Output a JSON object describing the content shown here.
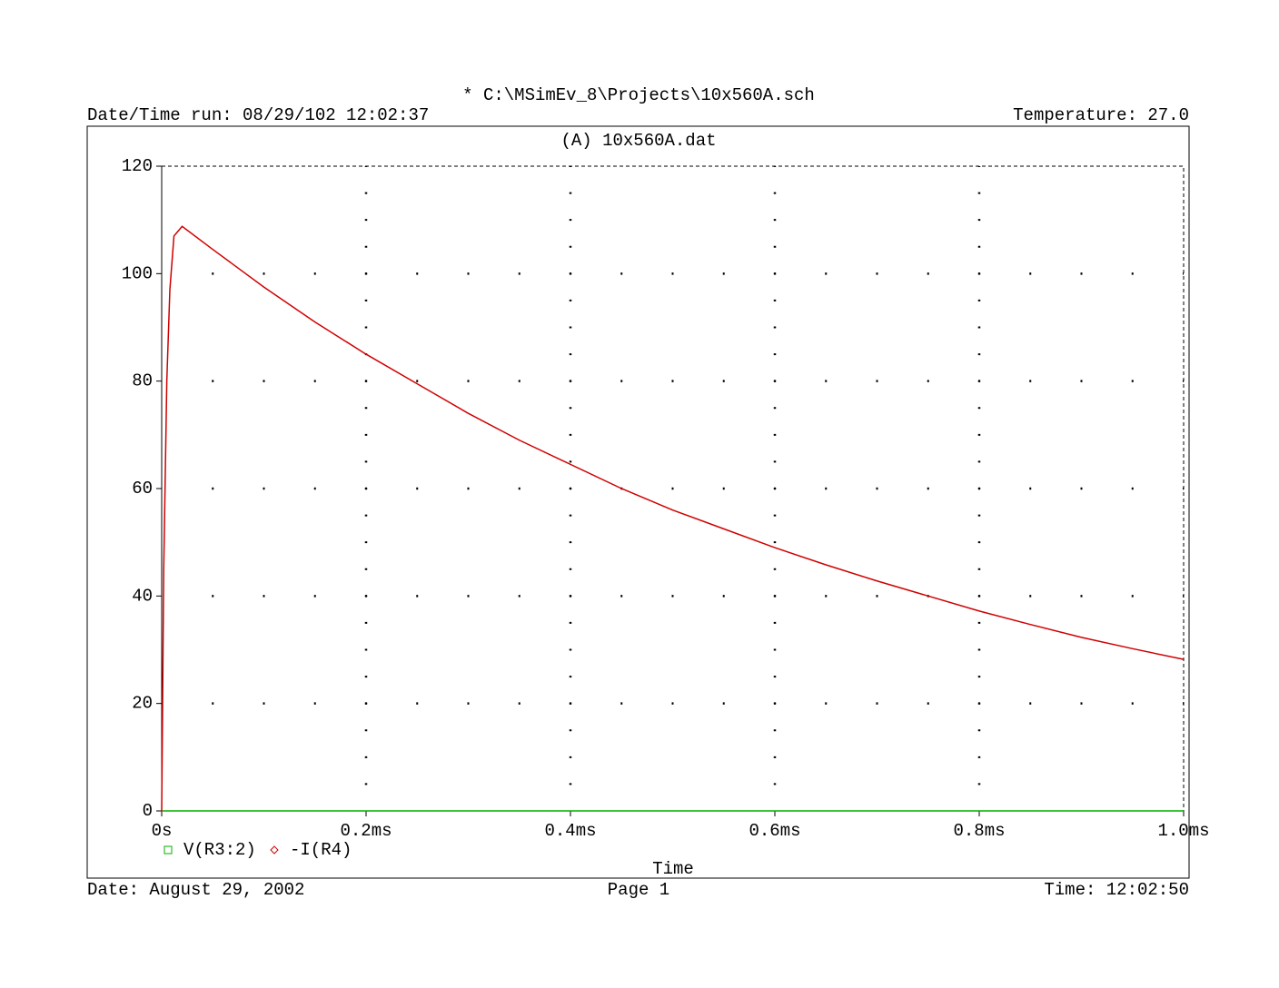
{
  "chart_data": {
    "type": "line",
    "title": "* C:\\MSimEv_8\\Projects\\10x560A.sch",
    "run_info": "Date/Time run: 08/29/102 12:02:37",
    "temperature": "Temperature: 27.0",
    "subtitle": "(A)  10x560A.dat",
    "xlabel": "Time",
    "footer": {
      "date": "Date: August 29, 2002",
      "page": "Page 1",
      "time": "Time: 12:02:50"
    },
    "xlim": [
      0,
      1.0
    ],
    "xticks": [
      {
        "value": 0,
        "label": "0s"
      },
      {
        "value": 0.2,
        "label": "0.2ms"
      },
      {
        "value": 0.4,
        "label": "0.4ms"
      },
      {
        "value": 0.6,
        "label": "0.6ms"
      },
      {
        "value": 0.8,
        "label": "0.8ms"
      },
      {
        "value": 1.0,
        "label": "1.0ms"
      }
    ],
    "ylim": [
      0,
      120
    ],
    "yticks": [
      0,
      20,
      40,
      60,
      80,
      100,
      120
    ],
    "grid": true,
    "series": [
      {
        "name": "V(R3:2)",
        "color": "#00b000",
        "marker": "square",
        "x": [
          0,
          1.0
        ],
        "values": [
          0,
          0
        ]
      },
      {
        "name": "-I(R4)",
        "color": "#d00000",
        "marker": "diamond",
        "x": [
          0,
          0.002,
          0.005,
          0.008,
          0.012,
          0.02,
          0.05,
          0.1,
          0.15,
          0.2,
          0.25,
          0.3,
          0.35,
          0.4,
          0.45,
          0.5,
          0.55,
          0.6,
          0.65,
          0.7,
          0.75,
          0.8,
          0.85,
          0.9,
          0.95,
          1.0
        ],
        "values": [
          0,
          45,
          80,
          97,
          107,
          108.8,
          104.5,
          97.5,
          91,
          85,
          79.5,
          74,
          69,
          64.5,
          60,
          56,
          52.5,
          49,
          45.8,
          42.8,
          40,
          37.2,
          34.7,
          32.3,
          30.2,
          28.2
        ]
      }
    ]
  }
}
